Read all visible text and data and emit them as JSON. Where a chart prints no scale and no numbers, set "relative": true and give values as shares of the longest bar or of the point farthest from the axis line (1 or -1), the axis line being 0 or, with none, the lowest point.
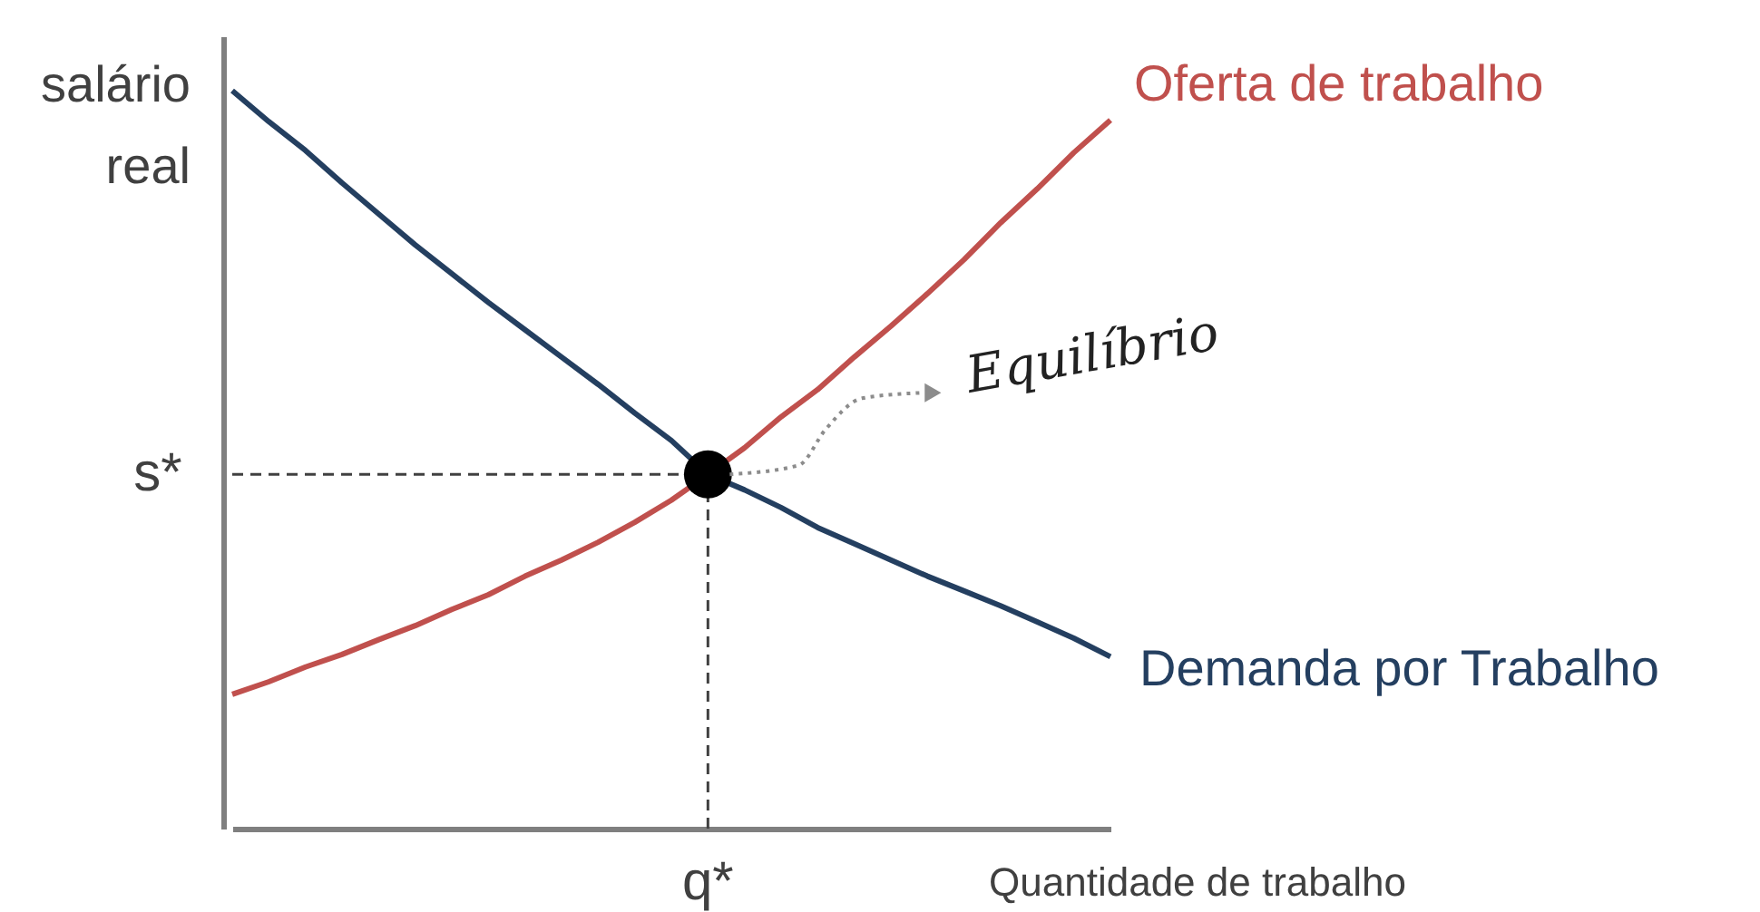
{
  "chart_data": {
    "type": "line",
    "relative": true,
    "xlabel": "Quantidade de trabalho",
    "ylabel": "salário real",
    "categories": [
      null,
      null,
      null,
      null,
      null,
      null,
      null,
      null,
      null,
      null,
      null,
      null,
      null,
      null,
      null,
      null,
      null,
      null,
      null,
      null,
      null,
      null,
      null,
      null,
      null
    ],
    "series": [
      {
        "name": "Oferta de trabalho",
        "color": "#c0504d",
        "values": [
          0.182,
          0.199,
          0.219,
          0.236,
          0.256,
          0.275,
          0.297,
          0.317,
          0.342,
          0.364,
          0.388,
          0.415,
          0.445,
          0.48,
          0.516,
          0.558,
          0.595,
          0.639,
          0.681,
          0.725,
          0.771,
          0.821,
          0.867,
          0.916,
          0.96
        ]
      },
      {
        "name": "Demanda por Trabalho",
        "color": "#243f60",
        "values": [
          1.0,
          0.958,
          0.919,
          0.875,
          0.833,
          0.791,
          0.752,
          0.713,
          0.676,
          0.639,
          0.602,
          0.563,
          0.526,
          0.48,
          0.459,
          0.435,
          0.408,
          0.386,
          0.364,
          0.342,
          0.322,
          0.302,
          0.28,
          0.258,
          0.233
        ]
      }
    ],
    "ref_lines": [
      {
        "axis": "y",
        "value": 0.48,
        "label": "s*",
        "color": "#404040",
        "line_style": "dashed"
      }
    ],
    "annotations": [
      "q*",
      "Equilíbrio"
    ],
    "grid": false,
    "marker": "none",
    "line_style": "solid"
  }
}
